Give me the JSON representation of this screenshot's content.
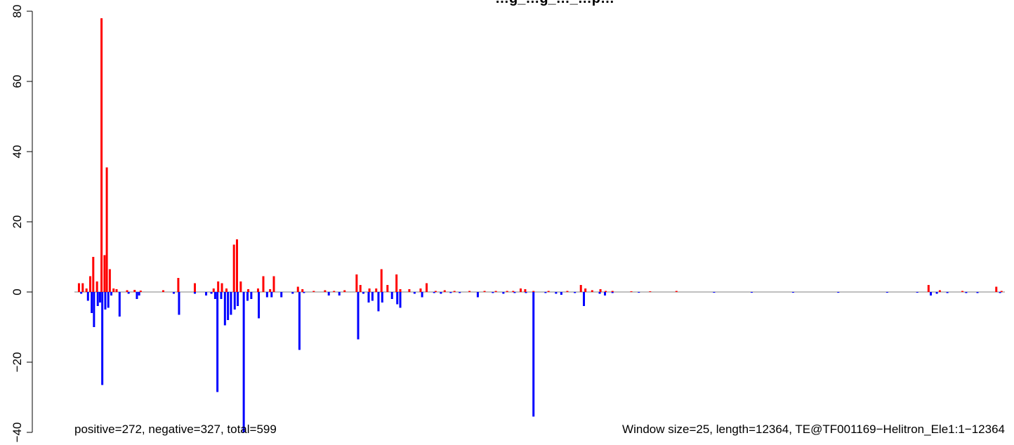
{
  "chart_data": {
    "type": "bar",
    "title": "…g_…g_…_…p…",
    "xlabel": "",
    "ylabel": "",
    "ylim": [
      -40,
      80
    ],
    "yticks": [
      -40,
      -20,
      0,
      20,
      40,
      60,
      80
    ],
    "ytick_labels": [
      "−40",
      "−20",
      "0",
      "20",
      "40",
      "60",
      "80"
    ],
    "x_range": [
      0,
      12364
    ],
    "window_size": 25,
    "grid": false,
    "legend": "none",
    "baseline_color": "#808080",
    "annotations": {
      "left": "positive=272, negative=327, total=599",
      "right": "Window size=25, length=12364, TE@TF001169−Helitron_Ele1:1−12364"
    },
    "series": [
      {
        "color": "#ff0000",
        "points": [
          {
            "x": 60,
            "y": 2.5
          },
          {
            "x": 110,
            "y": 2.5
          },
          {
            "x": 160,
            "y": 1.0
          },
          {
            "x": 210,
            "y": 4.5
          },
          {
            "x": 250,
            "y": 10.0
          },
          {
            "x": 300,
            "y": 3.0
          },
          {
            "x": 360,
            "y": 78.0
          },
          {
            "x": 400,
            "y": 10.5
          },
          {
            "x": 430,
            "y": 35.5
          },
          {
            "x": 470,
            "y": 6.5
          },
          {
            "x": 520,
            "y": 1.0
          },
          {
            "x": 560,
            "y": 0.8
          },
          {
            "x": 700,
            "y": 0.5
          },
          {
            "x": 800,
            "y": 0.6
          },
          {
            "x": 880,
            "y": 0.4
          },
          {
            "x": 1180,
            "y": 0.5
          },
          {
            "x": 1380,
            "y": 4.0
          },
          {
            "x": 1600,
            "y": 2.5
          },
          {
            "x": 1850,
            "y": 1.0
          },
          {
            "x": 1910,
            "y": 3.0
          },
          {
            "x": 1960,
            "y": 2.5
          },
          {
            "x": 2020,
            "y": 1.0
          },
          {
            "x": 2120,
            "y": 13.5
          },
          {
            "x": 2160,
            "y": 15.0
          },
          {
            "x": 2210,
            "y": 3.0
          },
          {
            "x": 2310,
            "y": 0.8
          },
          {
            "x": 2440,
            "y": 1.0
          },
          {
            "x": 2510,
            "y": 4.5
          },
          {
            "x": 2600,
            "y": 0.8
          },
          {
            "x": 2650,
            "y": 4.5
          },
          {
            "x": 2970,
            "y": 1.5
          },
          {
            "x": 3030,
            "y": 0.8
          },
          {
            "x": 3180,
            "y": 0.3
          },
          {
            "x": 3330,
            "y": 0.5
          },
          {
            "x": 3450,
            "y": 0.3
          },
          {
            "x": 3590,
            "y": 0.5
          },
          {
            "x": 3750,
            "y": 5.0
          },
          {
            "x": 3800,
            "y": 2.0
          },
          {
            "x": 3920,
            "y": 1.0
          },
          {
            "x": 4010,
            "y": 1.0
          },
          {
            "x": 4080,
            "y": 6.5
          },
          {
            "x": 4160,
            "y": 2.0
          },
          {
            "x": 4280,
            "y": 5.0
          },
          {
            "x": 4330,
            "y": 0.8
          },
          {
            "x": 4450,
            "y": 0.8
          },
          {
            "x": 4600,
            "y": 1.0
          },
          {
            "x": 4680,
            "y": 2.5
          },
          {
            "x": 4800,
            "y": 0.3
          },
          {
            "x": 4920,
            "y": 0.5
          },
          {
            "x": 5050,
            "y": 0.3
          },
          {
            "x": 5250,
            "y": 0.3
          },
          {
            "x": 5450,
            "y": 0.3
          },
          {
            "x": 5600,
            "y": 0.3
          },
          {
            "x": 5750,
            "y": 0.3
          },
          {
            "x": 5830,
            "y": 0.3
          },
          {
            "x": 5930,
            "y": 1.0
          },
          {
            "x": 5990,
            "y": 0.8
          },
          {
            "x": 6100,
            "y": 0.3
          },
          {
            "x": 6300,
            "y": 0.3
          },
          {
            "x": 6550,
            "y": 0.3
          },
          {
            "x": 6730,
            "y": 2.0
          },
          {
            "x": 6790,
            "y": 1.0
          },
          {
            "x": 6880,
            "y": 0.5
          },
          {
            "x": 6990,
            "y": 0.8
          },
          {
            "x": 7060,
            "y": 0.3
          },
          {
            "x": 7150,
            "y": 0.3
          },
          {
            "x": 7400,
            "y": 0.2
          },
          {
            "x": 7650,
            "y": 0.2
          },
          {
            "x": 8000,
            "y": 0.3
          },
          {
            "x": 11350,
            "y": 2.0
          },
          {
            "x": 11500,
            "y": 0.5
          },
          {
            "x": 11800,
            "y": 0.3
          },
          {
            "x": 12250,
            "y": 1.5
          },
          {
            "x": 12320,
            "y": 0.3
          }
        ]
      },
      {
        "color": "#0000ff",
        "points": [
          {
            "x": 90,
            "y": -0.5
          },
          {
            "x": 180,
            "y": -2.5
          },
          {
            "x": 230,
            "y": -6.0
          },
          {
            "x": 260,
            "y": -10.0
          },
          {
            "x": 310,
            "y": -4.0
          },
          {
            "x": 340,
            "y": -3.0
          },
          {
            "x": 370,
            "y": -26.5
          },
          {
            "x": 410,
            "y": -5.0
          },
          {
            "x": 450,
            "y": -4.5
          },
          {
            "x": 490,
            "y": -1.0
          },
          {
            "x": 600,
            "y": -7.0
          },
          {
            "x": 720,
            "y": -0.5
          },
          {
            "x": 830,
            "y": -2.0
          },
          {
            "x": 860,
            "y": -1.0
          },
          {
            "x": 1320,
            "y": -0.5
          },
          {
            "x": 1390,
            "y": -6.5
          },
          {
            "x": 1600,
            "y": -0.5
          },
          {
            "x": 1750,
            "y": -1.0
          },
          {
            "x": 1820,
            "y": -0.5
          },
          {
            "x": 1870,
            "y": -2.0
          },
          {
            "x": 1900,
            "y": -28.5
          },
          {
            "x": 1950,
            "y": -2.0
          },
          {
            "x": 2000,
            "y": -9.5
          },
          {
            "x": 2040,
            "y": -8.0
          },
          {
            "x": 2080,
            "y": -6.5
          },
          {
            "x": 2130,
            "y": -5.0
          },
          {
            "x": 2170,
            "y": -4.0
          },
          {
            "x": 2250,
            "y": -40.0
          },
          {
            "x": 2300,
            "y": -2.5
          },
          {
            "x": 2350,
            "y": -2.0
          },
          {
            "x": 2450,
            "y": -7.5
          },
          {
            "x": 2560,
            "y": -1.5
          },
          {
            "x": 2620,
            "y": -1.5
          },
          {
            "x": 2750,
            "y": -1.5
          },
          {
            "x": 2900,
            "y": -0.5
          },
          {
            "x": 2990,
            "y": -16.5
          },
          {
            "x": 3050,
            "y": -0.3
          },
          {
            "x": 3380,
            "y": -1.0
          },
          {
            "x": 3520,
            "y": -1.0
          },
          {
            "x": 3770,
            "y": -13.5
          },
          {
            "x": 3840,
            "y": -0.5
          },
          {
            "x": 3910,
            "y": -3.0
          },
          {
            "x": 3960,
            "y": -2.5
          },
          {
            "x": 4040,
            "y": -5.5
          },
          {
            "x": 4090,
            "y": -3.0
          },
          {
            "x": 4220,
            "y": -2.0
          },
          {
            "x": 4290,
            "y": -3.5
          },
          {
            "x": 4330,
            "y": -4.5
          },
          {
            "x": 4520,
            "y": -0.5
          },
          {
            "x": 4620,
            "y": -1.5
          },
          {
            "x": 4780,
            "y": -0.3
          },
          {
            "x": 4870,
            "y": -0.5
          },
          {
            "x": 5000,
            "y": -0.3
          },
          {
            "x": 5120,
            "y": -0.3
          },
          {
            "x": 5360,
            "y": -1.5
          },
          {
            "x": 5560,
            "y": -0.3
          },
          {
            "x": 5700,
            "y": -0.5
          },
          {
            "x": 5850,
            "y": -0.3
          },
          {
            "x": 6000,
            "y": -0.3
          },
          {
            "x": 6100,
            "y": -35.5
          },
          {
            "x": 6260,
            "y": -0.3
          },
          {
            "x": 6400,
            "y": -0.5
          },
          {
            "x": 6470,
            "y": -0.8
          },
          {
            "x": 6650,
            "y": -0.3
          },
          {
            "x": 6770,
            "y": -4.0
          },
          {
            "x": 6980,
            "y": -0.5
          },
          {
            "x": 7050,
            "y": -1.0
          },
          {
            "x": 7150,
            "y": -0.3
          },
          {
            "x": 7500,
            "y": -0.2
          },
          {
            "x": 8500,
            "y": -0.2
          },
          {
            "x": 9000,
            "y": -0.2
          },
          {
            "x": 9550,
            "y": -0.2
          },
          {
            "x": 10150,
            "y": -0.2
          },
          {
            "x": 10800,
            "y": -0.2
          },
          {
            "x": 11200,
            "y": -0.2
          },
          {
            "x": 11380,
            "y": -1.0
          },
          {
            "x": 11460,
            "y": -0.5
          },
          {
            "x": 11600,
            "y": -0.3
          },
          {
            "x": 11850,
            "y": -0.3
          },
          {
            "x": 12000,
            "y": -0.3
          },
          {
            "x": 12300,
            "y": -0.3
          }
        ]
      }
    ]
  }
}
